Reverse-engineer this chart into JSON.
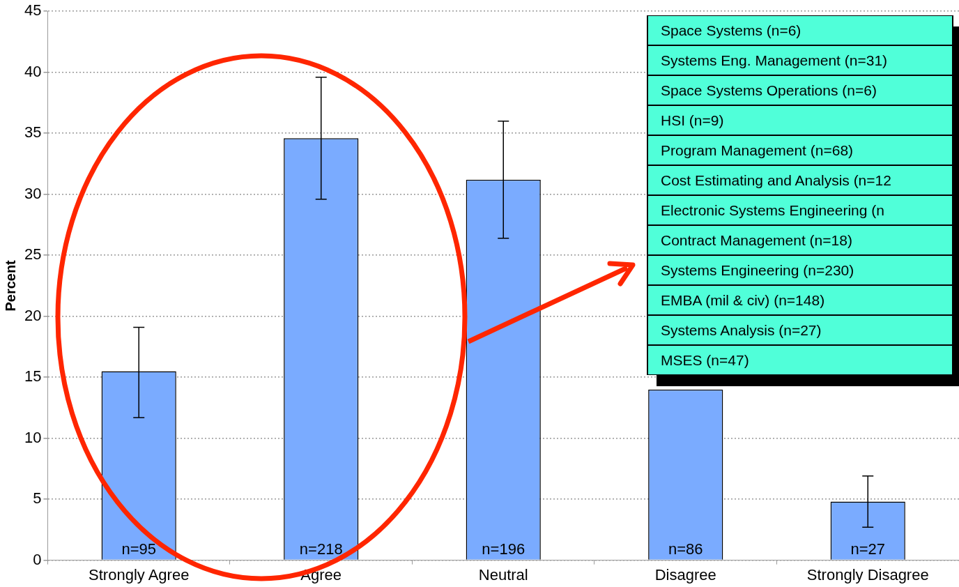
{
  "chart_data": {
    "type": "bar",
    "ylabel": "Percent",
    "categories": [
      "Strongly Agree",
      "Agree",
      "Neutral",
      "Disagree",
      "Strongly Disagree"
    ],
    "values": [
      15.5,
      34.6,
      31.2,
      14.0,
      4.8
    ],
    "errors": [
      [
        11.7,
        19.1
      ],
      [
        29.6,
        39.6
      ],
      [
        26.4,
        36.0
      ],
      null,
      [
        2.7,
        6.9
      ]
    ],
    "color": "#7aabff",
    "ylim": [
      0,
      45
    ],
    "yticks": [
      0,
      5,
      10,
      15,
      20,
      25,
      30,
      35,
      40,
      45
    ],
    "grid": "y",
    "legend": false,
    "annotations": [
      {
        "text": "n=95",
        "x": "Strongly Agree",
        "y": 0
      },
      {
        "text": "n=218",
        "x": "Agree",
        "y": 0
      },
      {
        "text": "n=196",
        "x": "Neutral",
        "y": 0
      },
      {
        "text": "n=86",
        "x": "Disagree",
        "y": 0
      },
      {
        "text": "n=27",
        "x": "Strongly Disagree",
        "y": 0
      },
      "Space Systems (n=6)",
      "Systems Eng. Management (n=31)",
      "Space Systems Operations (n=6)",
      "HSI (n=9)",
      "Program Management (n=68)",
      "Cost Estimating and Analysis (n=12",
      "Electronic Systems Engineering (n",
      "Contract Management (n=18)",
      "Systems Engineering (n=230)",
      "EMBA (mil & civ) (n=148)",
      "Systems Analysis (n=27)",
      "MSES (n=47)"
    ]
  }
}
